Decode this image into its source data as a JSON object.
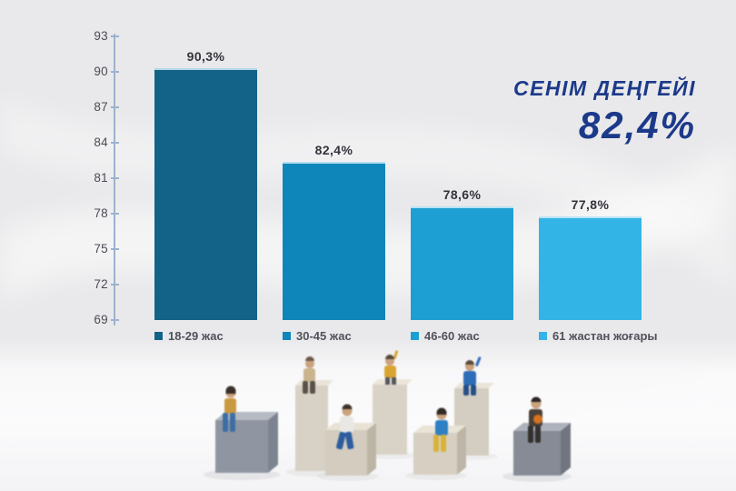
{
  "page": {
    "background_color": "#e9e9eb"
  },
  "header": {
    "title": "СЕНІМ ДЕҢГЕЙІ",
    "value": "82,4%",
    "color": "#1c3a8a"
  },
  "chart_data": {
    "type": "bar",
    "title": "СЕНІМ ДЕҢГЕЙІ",
    "subtitle": "82,4%",
    "categories": [
      "18-29 жас",
      "30-45 жас",
      "46-60 жас",
      "61 жастан жоғары"
    ],
    "values": [
      90.3,
      82.4,
      78.6,
      77.8
    ],
    "value_labels": [
      "90,3%",
      "82,4%",
      "78,6%",
      "77,8%"
    ],
    "bar_colors": [
      "#136288",
      "#0f86ba",
      "#1e9fd3",
      "#33b4e6"
    ],
    "xlabel": "",
    "ylabel": "",
    "ylim": [
      69,
      93
    ],
    "yticks": [
      "93",
      "90",
      "87",
      "84",
      "81",
      "78",
      "75",
      "72",
      "69"
    ],
    "grid": false,
    "legend_position": "below-bars",
    "axis_color": "#9db2ce"
  },
  "scene": {
    "alt": "Miniature figurines seated on gray and beige blocks of different heights"
  }
}
